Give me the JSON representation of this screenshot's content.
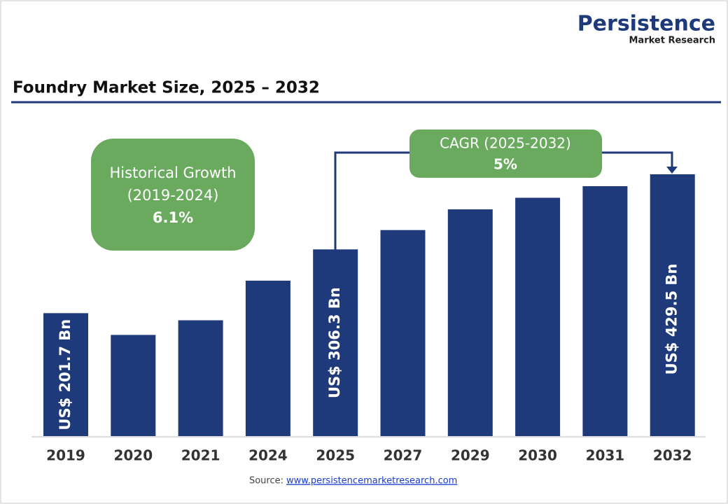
{
  "chart_data": {
    "type": "bar",
    "title": "Foundry Market Size, 2025 – 2032",
    "brand": "Persistence",
    "brand_sub": "Market Research",
    "categories": [
      "2019",
      "2020",
      "2021",
      "2024",
      "2025",
      "2027",
      "2029",
      "2030",
      "2031",
      "2032"
    ],
    "values": [
      201.7,
      166,
      190,
      255,
      306.3,
      338,
      372,
      391,
      410,
      429.5
    ],
    "value_labels": [
      "US$ 201.7 Bn",
      null,
      null,
      null,
      "US$ 306.3 Bn",
      null,
      null,
      null,
      null,
      "US$ 429.5 Bn"
    ],
    "color": "#1f3a7a",
    "annotations": [
      {
        "lines": [
          "Historical Growth",
          "(2019-2024)",
          "6.1%"
        ]
      },
      {
        "lines": [
          "CAGR (2025-2032)",
          "5%"
        ]
      }
    ],
    "source_label": "Source:",
    "source_link": "www.persistencemarketresearch.com"
  }
}
